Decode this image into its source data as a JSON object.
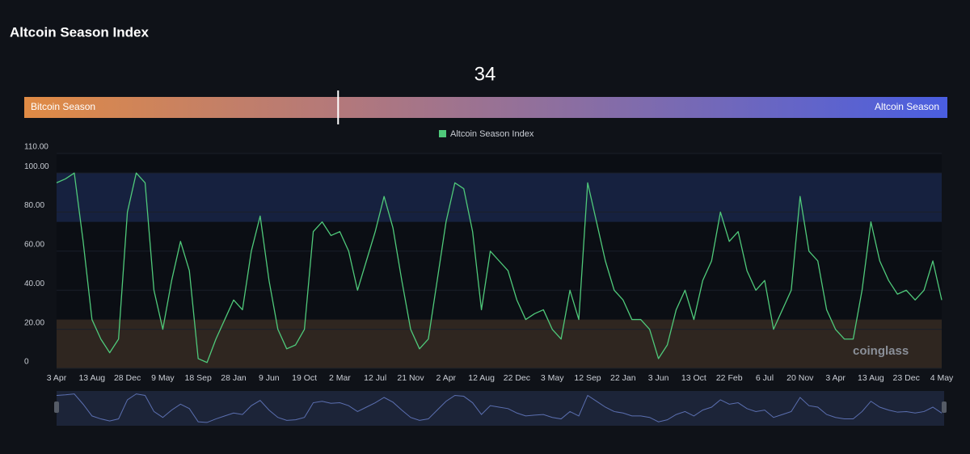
{
  "chart_data": {
    "type": "line",
    "title": "Altcoin Season Index",
    "gauge": {
      "value": 34,
      "min": 0,
      "max": 100,
      "left_label": "Bitcoin Season",
      "right_label": "Altcoin Season"
    },
    "watermark": "coinglass",
    "categories": [
      "3 Apr",
      null,
      null,
      null,
      "13 Aug",
      null,
      null,
      null,
      "28 Dec",
      null,
      null,
      null,
      "9 May",
      null,
      null,
      null,
      "18 Sep",
      null,
      null,
      null,
      "28 Jan",
      null,
      null,
      null,
      "9 Jun",
      null,
      null,
      null,
      "19 Oct",
      null,
      null,
      null,
      "2 Mar",
      null,
      null,
      null,
      "12 Jul",
      null,
      null,
      null,
      "21 Nov",
      null,
      null,
      null,
      "2 Apr",
      null,
      null,
      null,
      "12 Aug",
      null,
      null,
      null,
      "22 Dec",
      null,
      null,
      null,
      "3 May",
      null,
      null,
      null,
      "12 Sep",
      null,
      null,
      null,
      "22 Jan",
      null,
      null,
      null,
      "3 Jun",
      null,
      null,
      null,
      "13 Oct",
      null,
      null,
      null,
      "22 Feb",
      null,
      null,
      null,
      "6 Jul",
      null,
      null,
      null,
      "20 Nov",
      null,
      null,
      null,
      "3 Apr",
      null,
      null,
      null,
      "13 Aug",
      null,
      null,
      null,
      "23 Dec",
      null,
      null,
      null,
      "4 May"
    ],
    "series": [
      {
        "name": "Altcoin Season Index",
        "color": "#4fc97a",
        "values": [
          95,
          97,
          100,
          65,
          25,
          15,
          8,
          15,
          80,
          100,
          95,
          40,
          20,
          45,
          65,
          50,
          5,
          3,
          15,
          25,
          35,
          30,
          60,
          78,
          45,
          20,
          10,
          12,
          20,
          70,
          75,
          68,
          70,
          60,
          40,
          55,
          70,
          88,
          72,
          45,
          20,
          10,
          15,
          45,
          75,
          95,
          92,
          70,
          30,
          60,
          55,
          50,
          35,
          25,
          28,
          30,
          20,
          15,
          40,
          25,
          95,
          75,
          55,
          40,
          35,
          25,
          25,
          20,
          5,
          12,
          30,
          40,
          25,
          45,
          55,
          80,
          65,
          70,
          50,
          40,
          45,
          20,
          30,
          40,
          88,
          60,
          55,
          30,
          20,
          15,
          15,
          40,
          75,
          55,
          45,
          38,
          40,
          35,
          40,
          55,
          35
        ]
      }
    ],
    "bands": [
      {
        "from": 75,
        "to": 100,
        "color": "#16213f"
      },
      {
        "from": 0,
        "to": 25,
        "color": "#2f2620"
      }
    ],
    "ylim": [
      0,
      110
    ],
    "yticks": [
      0,
      {
        "value": 20,
        "label": "20.00"
      },
      {
        "value": 40,
        "label": "40.00"
      },
      {
        "value": 60,
        "label": "60.00"
      },
      {
        "value": 80,
        "label": "80.00"
      },
      {
        "value": 100,
        "label": "100.00"
      },
      {
        "value": 110,
        "label": "110.00"
      }
    ],
    "legend": "top"
  }
}
